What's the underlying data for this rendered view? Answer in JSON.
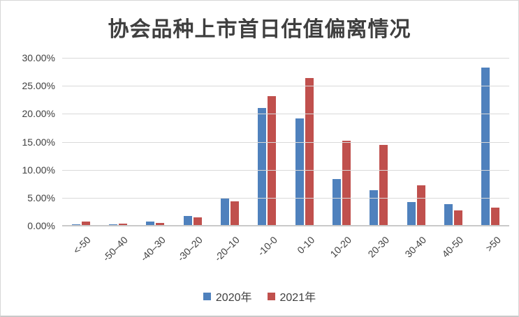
{
  "title": "协会品种上市首日估值偏离情况",
  "chart_data": {
    "type": "bar",
    "title": "协会品种上市首日估值偏离情况",
    "categories": [
      "<-50",
      "-50–40",
      "-40–30",
      "-30–20",
      "-20–10",
      "-10-0",
      "0-10",
      "10-20",
      "20-30",
      "30-40",
      "40-50",
      ">50"
    ],
    "series": [
      {
        "name": "2020年",
        "color": "#4F81BD",
        "values": [
          0.3,
          0.3,
          0.8,
          1.8,
          4.8,
          21.1,
          19.2,
          8.3,
          6.4,
          4.2,
          3.9,
          28.3
        ]
      },
      {
        "name": "2021年",
        "color": "#C0504D",
        "values": [
          0.7,
          0.4,
          0.5,
          1.5,
          4.3,
          23.2,
          26.4,
          15.2,
          14.5,
          7.2,
          2.7,
          3.2
        ]
      }
    ],
    "xlabel": "",
    "ylabel": "",
    "ylim": [
      0,
      30
    ],
    "y_ticks": [
      "30.00%",
      "25.00%",
      "20.00%",
      "15.00%",
      "10.00%",
      "5.00%",
      "0.00%"
    ],
    "grid": true,
    "legend_position": "bottom"
  },
  "colors": {
    "series_2020": "#4F81BD",
    "series_2021": "#C0504D",
    "gridline": "#d9d9d9",
    "axis_line": "#c9c9c9",
    "text": "#404040",
    "background": "#ffffff"
  }
}
